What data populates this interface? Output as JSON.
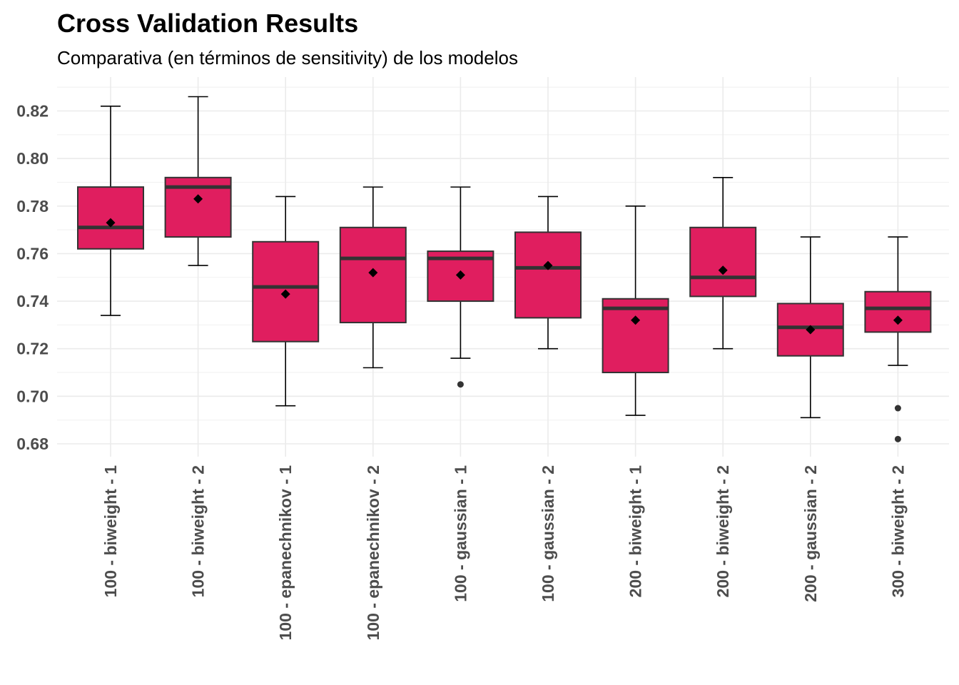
{
  "chart_data": {
    "type": "boxplot",
    "title": "Cross Validation Results",
    "subtitle": "Comparativa (en términos de sensitivity) de los modelos",
    "xlabel": "",
    "ylabel": "",
    "ylim": [
      0.676,
      0.83
    ],
    "yticks": [
      0.68,
      0.7,
      0.72,
      0.74,
      0.76,
      0.78,
      0.8,
      0.82
    ],
    "ytick_labels": [
      "0.68",
      "0.70",
      "0.72",
      "0.74",
      "0.76",
      "0.78",
      "0.80",
      "0.82"
    ],
    "grid": true,
    "legend": "none",
    "fill_color": "#E01E5F",
    "categories": [
      "100 - biweight - 1",
      "100 - biweight - 2",
      "100 - epanechnikov - 1",
      "100 - epanechnikov - 2",
      "100 - gaussian - 1",
      "100 - gaussian - 2",
      "200 - biweight - 1",
      "200 - biweight - 2",
      "200 - gaussian - 2",
      "300 - biweight - 2"
    ],
    "boxes": [
      {
        "min": 0.734,
        "q1": 0.762,
        "median": 0.771,
        "q3": 0.788,
        "max": 0.822,
        "mean": 0.773,
        "outliers": []
      },
      {
        "min": 0.755,
        "q1": 0.767,
        "median": 0.788,
        "q3": 0.792,
        "max": 0.826,
        "mean": 0.783,
        "outliers": []
      },
      {
        "min": 0.696,
        "q1": 0.723,
        "median": 0.746,
        "q3": 0.765,
        "max": 0.784,
        "mean": 0.743,
        "outliers": []
      },
      {
        "min": 0.712,
        "q1": 0.731,
        "median": 0.758,
        "q3": 0.771,
        "max": 0.788,
        "mean": 0.752,
        "outliers": []
      },
      {
        "min": 0.716,
        "q1": 0.74,
        "median": 0.758,
        "q3": 0.761,
        "max": 0.788,
        "mean": 0.751,
        "outliers": [
          0.705
        ]
      },
      {
        "min": 0.72,
        "q1": 0.733,
        "median": 0.754,
        "q3": 0.769,
        "max": 0.784,
        "mean": 0.755,
        "outliers": []
      },
      {
        "min": 0.692,
        "q1": 0.71,
        "median": 0.737,
        "q3": 0.741,
        "max": 0.78,
        "mean": 0.732,
        "outliers": []
      },
      {
        "min": 0.72,
        "q1": 0.742,
        "median": 0.75,
        "q3": 0.771,
        "max": 0.792,
        "mean": 0.753,
        "outliers": []
      },
      {
        "min": 0.691,
        "q1": 0.717,
        "median": 0.729,
        "q3": 0.739,
        "max": 0.767,
        "mean": 0.728,
        "outliers": []
      },
      {
        "min": 0.713,
        "q1": 0.727,
        "median": 0.737,
        "q3": 0.744,
        "max": 0.767,
        "mean": 0.732,
        "outliers": [
          0.695,
          0.682
        ]
      }
    ]
  }
}
